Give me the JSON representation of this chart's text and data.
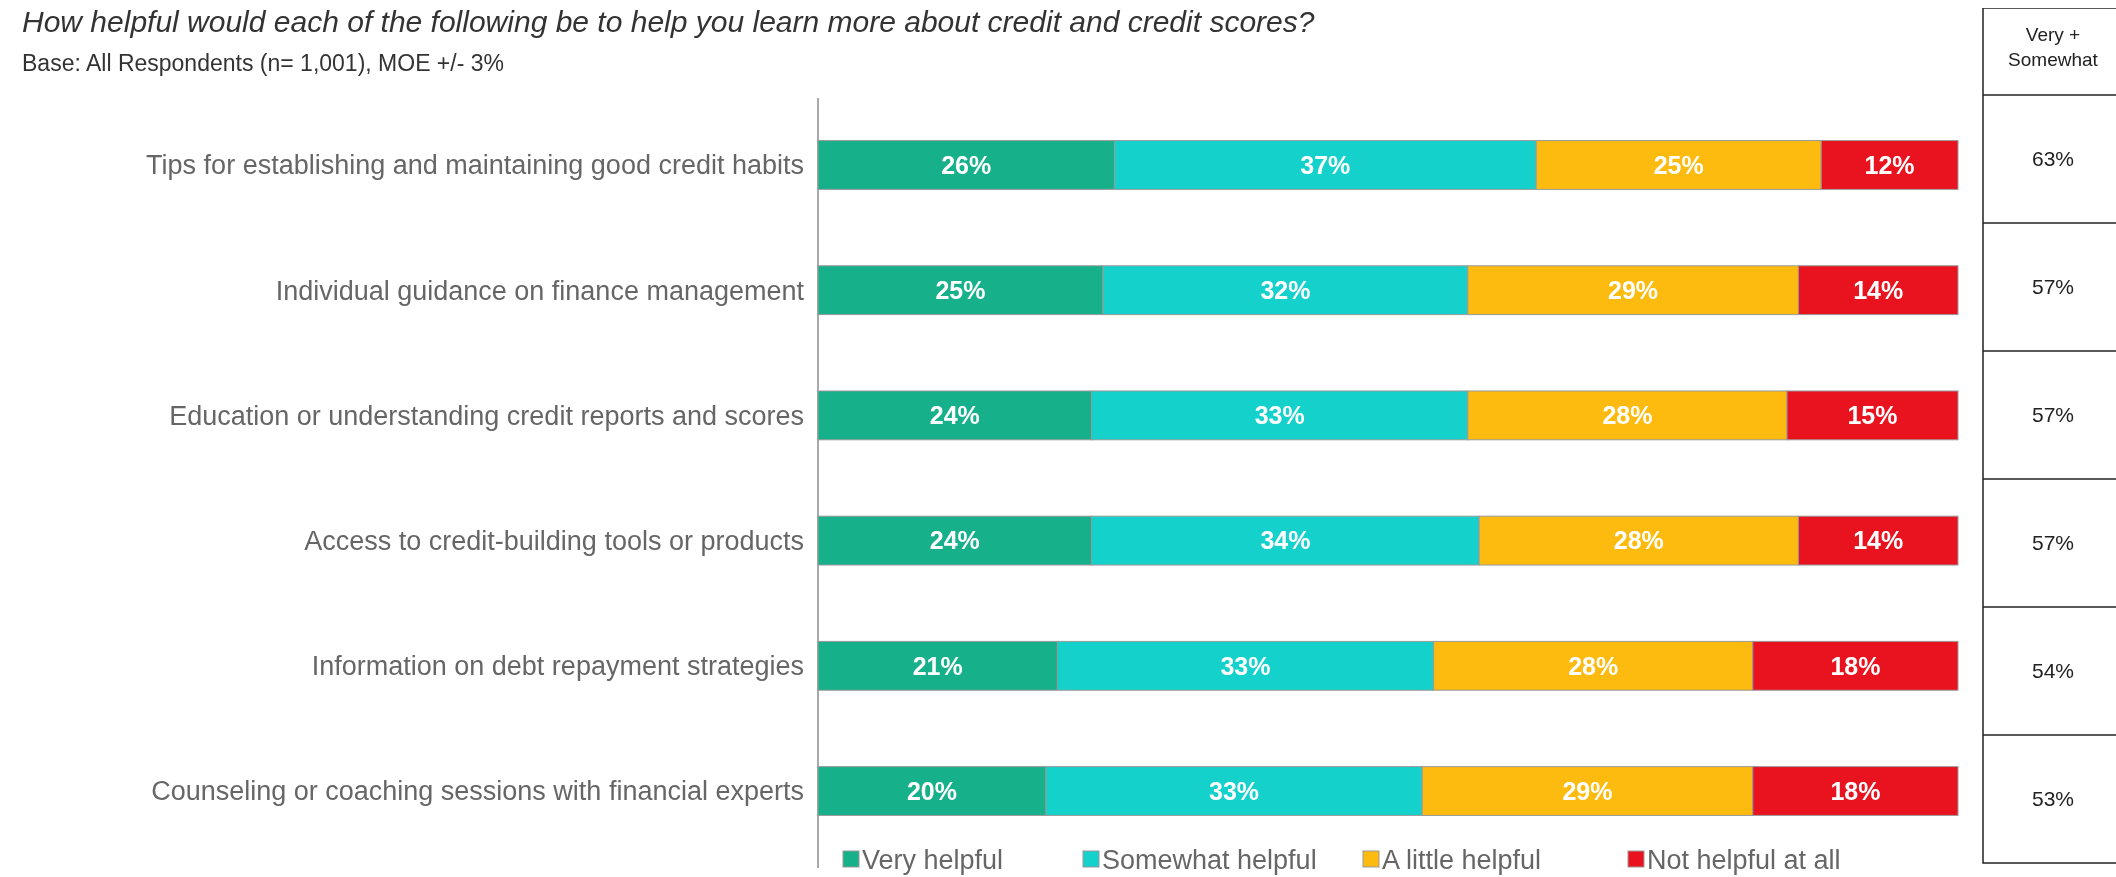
{
  "chart_data": {
    "type": "bar",
    "orientation": "horizontal",
    "stacked": true,
    "legend": "bottom",
    "title": "How helpful would each of the following be to help you learn more about credit and credit scores?",
    "subtitle": "Base: All Respondents (n= 1,001), MOE +/- 3%",
    "categories": [
      "Tips for establishing and maintaining good credit habits",
      "Individual guidance on finance management",
      "Education or understanding credit reports and scores",
      "Access to credit-building tools or products",
      "Information on debt repayment strategies",
      "Counseling or coaching sessions with financial experts"
    ],
    "series": [
      {
        "name": "Very helpful",
        "color": "#16b08a",
        "values": [
          26,
          25,
          24,
          24,
          21,
          20
        ],
        "value_labels": [
          "26%",
          "25%",
          "24%",
          "24%",
          "21%",
          "20%"
        ]
      },
      {
        "name": "Somewhat helpful",
        "color": "#14d2cb",
        "values": [
          37,
          32,
          33,
          34,
          33,
          33
        ],
        "value_labels": [
          "37%",
          "32%",
          "33%",
          "34%",
          "33%",
          "33%"
        ]
      },
      {
        "name": "A little helpful",
        "color": "#fdbb10",
        "values": [
          25,
          29,
          28,
          28,
          28,
          29
        ],
        "value_labels": [
          "25%",
          "29%",
          "28%",
          "28%",
          "28%",
          "29%"
        ]
      },
      {
        "name": "Not helpful at all",
        "color": "#e8131f",
        "values": [
          12,
          14,
          15,
          14,
          18,
          18
        ],
        "value_labels": [
          "12%",
          "14%",
          "15%",
          "14%",
          "18%",
          "18%"
        ]
      }
    ],
    "annotations": [
      "Very + Somewhat",
      "63%",
      "57%",
      "57%",
      "57%",
      "54%",
      "53%"
    ]
  }
}
